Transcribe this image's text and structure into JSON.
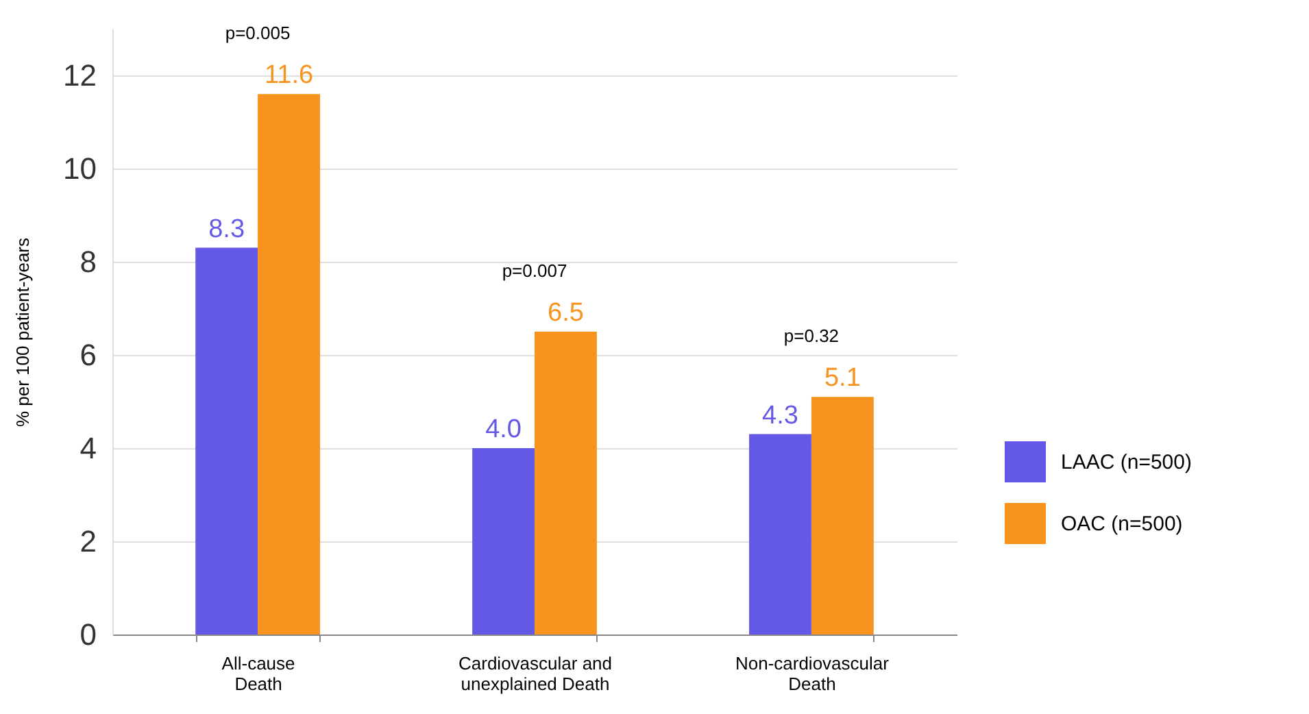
{
  "chart_data": {
    "type": "bar",
    "ylabel": "% per 100 patient-years",
    "categories": [
      "All-cause Death",
      "Cardiovascular and unexplained Death",
      "Non-cardiovascular Death"
    ],
    "series": [
      {
        "name": "LAAC (n=500)",
        "color": "#6459e6",
        "values": [
          8.3,
          4.0,
          4.3
        ],
        "value_labels": [
          "8.3",
          "4.0",
          "4.3"
        ]
      },
      {
        "name": "OAC (n=500)",
        "color": "#f7931e",
        "values": [
          11.6,
          6.5,
          5.1
        ],
        "value_labels": [
          "11.6",
          "6.5",
          "5.1"
        ]
      }
    ],
    "ylim": [
      0,
      13
    ],
    "yticks": [
      0,
      2,
      4,
      6,
      8,
      10,
      12
    ],
    "grid": "y",
    "legend": "right",
    "annotations": [
      "p=0.005",
      "p=0.007",
      "p=0.32"
    ]
  }
}
